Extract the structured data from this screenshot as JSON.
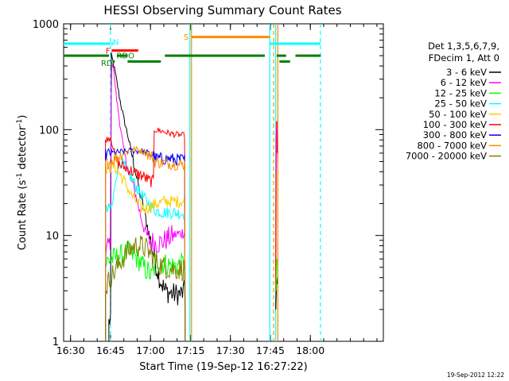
{
  "chart_data": {
    "type": "line",
    "title": "HESSI Observing Summary Count Rates",
    "xlabel": "Start Time (19-Sep-12 16:27:22)",
    "ylabel": "Count Rate (s^-1 detector^-1)",
    "ylabel_prefix": "Count Rate (s",
    "ylabel_mid": " detector",
    "ylabel_suffix": ")",
    "ylabel_exp": "-1",
    "yscale": "log",
    "ylim": [
      1,
      1000
    ],
    "xlim_minutes": [
      0,
      120
    ],
    "x_ticks": [
      {
        "label": "16:30",
        "t": 2.6
      },
      {
        "label": "16:45",
        "t": 17.6
      },
      {
        "label": "17:00",
        "t": 32.6
      },
      {
        "label": "17:15",
        "t": 47.6
      },
      {
        "label": "17:30",
        "t": 62.6
      },
      {
        "label": "17:45",
        "t": 77.6
      },
      {
        "label": "18:00",
        "t": 92.6
      }
    ],
    "y_ticks": [
      {
        "label": "1",
        "v": 1
      },
      {
        "label": "10",
        "v": 10
      },
      {
        "label": "100",
        "v": 100
      },
      {
        "label": "1000",
        "v": 1000
      }
    ],
    "legend_header": [
      "Det 1,3,5,6,7,9,",
      "FDecim 1, Att 0"
    ],
    "legend_placement": "right",
    "timestamp": "19-Sep-2012 12:22",
    "series": [
      {
        "name": "3 - 6 keV",
        "color": "#000000",
        "points": [
          [
            17.0,
            1.5
          ],
          [
            17.6,
            1.7
          ],
          [
            17.9,
            500
          ],
          [
            18.7,
            420
          ],
          [
            19.8,
            300
          ],
          [
            21.0,
            200
          ],
          [
            22.5,
            130
          ],
          [
            24.0,
            90
          ],
          [
            25.5,
            60
          ],
          [
            27.0,
            40
          ],
          [
            28.5,
            26
          ],
          [
            30.0,
            18
          ],
          [
            31.5,
            12
          ],
          [
            33.0,
            8
          ],
          [
            34.5,
            5.5
          ],
          [
            36.0,
            4
          ],
          [
            38.0,
            3
          ],
          [
            41.0,
            2.8
          ],
          [
            44.0,
            2.8
          ],
          [
            45.6,
            3
          ]
        ]
      },
      {
        "name": "6 - 12 keV",
        "color": "#ff00ff",
        "points": [
          [
            15.7,
            7
          ],
          [
            17.6,
            9
          ],
          [
            17.9,
            480
          ],
          [
            18.7,
            380
          ],
          [
            19.8,
            200
          ],
          [
            21.0,
            120
          ],
          [
            22.0,
            80
          ],
          [
            23.0,
            55
          ],
          [
            24.5,
            40
          ],
          [
            26.0,
            30
          ],
          [
            27.5,
            22
          ],
          [
            29.0,
            15
          ],
          [
            30.5,
            11
          ],
          [
            32.0,
            9
          ],
          [
            34.0,
            8.5
          ],
          [
            36.0,
            8.5
          ],
          [
            38.0,
            9
          ],
          [
            41.0,
            10
          ],
          [
            44.0,
            10.5
          ],
          [
            45.6,
            11
          ]
        ]
      },
      {
        "name": "12 - 25 keV",
        "color": "#00ff00",
        "points": [
          [
            15.7,
            5.5
          ],
          [
            17.6,
            6
          ],
          [
            18.0,
            6
          ],
          [
            20.0,
            6.2
          ],
          [
            22.0,
            6.5
          ],
          [
            24.0,
            7
          ],
          [
            26.0,
            6.5
          ],
          [
            28.0,
            6
          ],
          [
            30.0,
            5
          ],
          [
            32.0,
            4.5
          ],
          [
            33.0,
            4
          ],
          [
            35.0,
            6
          ],
          [
            37.0,
            5.5
          ],
          [
            40.0,
            5.2
          ],
          [
            43.0,
            5.2
          ],
          [
            45.6,
            5.5
          ]
        ]
      },
      {
        "name": "25 - 50 keV",
        "color": "#00ffff",
        "points": [
          [
            15.7,
            17
          ],
          [
            17.6,
            18
          ],
          [
            18.5,
            20
          ],
          [
            19.5,
            35
          ],
          [
            20.5,
            45
          ],
          [
            21.5,
            50
          ],
          [
            23.0,
            44
          ],
          [
            24.5,
            38
          ],
          [
            26.0,
            33
          ],
          [
            27.5,
            28
          ],
          [
            29.0,
            25
          ],
          [
            30.5,
            22
          ],
          [
            32.0,
            20
          ],
          [
            33.5,
            18
          ],
          [
            35.0,
            17
          ],
          [
            38.0,
            16.5
          ],
          [
            41.0,
            16.5
          ],
          [
            45.6,
            16
          ]
        ]
      },
      {
        "name": "50 - 100 keV",
        "color": "#ffcc00",
        "points": [
          [
            15.7,
            42
          ],
          [
            17.6,
            44
          ],
          [
            19.0,
            45
          ],
          [
            20.5,
            40
          ],
          [
            22.0,
            35
          ],
          [
            23.5,
            30
          ],
          [
            25.0,
            25
          ],
          [
            26.5,
            22
          ],
          [
            28.0,
            20
          ],
          [
            29.5,
            18
          ],
          [
            31.0,
            18
          ],
          [
            33.0,
            19
          ],
          [
            35.0,
            20
          ],
          [
            38.0,
            21
          ],
          [
            41.0,
            21
          ],
          [
            45.6,
            21
          ]
        ]
      },
      {
        "name": "100 - 300 keV",
        "color": "#ff0000",
        "points": [
          [
            15.7,
            80
          ],
          [
            17.6,
            85
          ],
          [
            18.5,
            70
          ],
          [
            19.5,
            55
          ],
          [
            20.5,
            48
          ],
          [
            22.0,
            45
          ],
          [
            24.0,
            43
          ],
          [
            26.0,
            40
          ],
          [
            28.0,
            38
          ],
          [
            30.0,
            36
          ],
          [
            32.0,
            33
          ],
          [
            33.8,
            32
          ],
          [
            34.0,
            100
          ],
          [
            36.0,
            98
          ],
          [
            38.0,
            95
          ],
          [
            40.0,
            92
          ],
          [
            42.0,
            90
          ],
          [
            45.6,
            88
          ]
        ]
      },
      {
        "name": "300 - 800 keV",
        "color": "#0000ff",
        "points": [
          [
            15.7,
            58
          ],
          [
            17.6,
            60
          ],
          [
            20.0,
            61
          ],
          [
            22.5,
            62
          ],
          [
            25.0,
            63
          ],
          [
            27.5,
            63
          ],
          [
            30.0,
            62
          ],
          [
            32.0,
            60
          ],
          [
            33.8,
            57
          ],
          [
            34.0,
            54
          ],
          [
            37.0,
            53
          ],
          [
            40.0,
            53
          ],
          [
            43.0,
            52
          ],
          [
            45.6,
            52
          ]
        ]
      },
      {
        "name": "800 - 7000 keV",
        "color": "#ff8c00",
        "points": [
          [
            15.7,
            48
          ],
          [
            17.6,
            50
          ],
          [
            20.0,
            55
          ],
          [
            22.5,
            60
          ],
          [
            25.0,
            65
          ],
          [
            27.5,
            65
          ],
          [
            30.0,
            62
          ],
          [
            32.0,
            58
          ],
          [
            33.8,
            54
          ],
          [
            34.0,
            50
          ],
          [
            37.0,
            49
          ],
          [
            40.0,
            48
          ],
          [
            43.0,
            47
          ],
          [
            45.6,
            47
          ]
        ]
      },
      {
        "name": "7000 - 20000 keV",
        "color": "#808000",
        "points": [
          [
            15.7,
            3.2
          ],
          [
            17.6,
            4
          ],
          [
            19.0,
            4.5
          ],
          [
            21.0,
            5.5
          ],
          [
            23.0,
            6.5
          ],
          [
            25.0,
            7.5
          ],
          [
            27.0,
            8
          ],
          [
            29.0,
            8
          ],
          [
            31.0,
            7.5
          ],
          [
            33.0,
            6.5
          ],
          [
            35.0,
            5.5
          ],
          [
            38.0,
            5
          ],
          [
            41.0,
            4.8
          ],
          [
            45.6,
            4.8
          ]
        ]
      }
    ],
    "late_burst": [
      {
        "color": "#ff0000",
        "points": [
          [
            79.6,
            3
          ],
          [
            79.8,
            80
          ],
          [
            80.0,
            120
          ],
          [
            80.2,
            60
          ]
        ]
      },
      {
        "color": "#ff00ff",
        "points": [
          [
            79.8,
            40
          ],
          [
            80.0,
            110
          ]
        ]
      },
      {
        "color": "#000000",
        "points": [
          [
            79.6,
            2
          ],
          [
            79.9,
            4
          ],
          [
            80.1,
            3.5
          ]
        ]
      },
      {
        "color": "#00ff00",
        "points": [
          [
            79.7,
            3
          ],
          [
            80.0,
            6
          ]
        ]
      }
    ],
    "vertical_markers": [
      {
        "t": 17.6,
        "color": "#00ffff",
        "style": "dashed"
      },
      {
        "t": 47.4,
        "color": "#00ffff",
        "style": "solid"
      },
      {
        "t": 48.0,
        "color": "#ff8c00",
        "style": "solid"
      },
      {
        "t": 77.4,
        "color": "#00ffff",
        "style": "solid"
      },
      {
        "t": 78.8,
        "color": "#ff8c00",
        "style": "dashed"
      },
      {
        "t": 79.6,
        "color": "#00ffff",
        "style": "solid"
      },
      {
        "t": 80.4,
        "color": "#ff8c00",
        "style": "solid"
      },
      {
        "t": 96.4,
        "color": "#00ffff",
        "style": "dashed"
      }
    ],
    "flag_bars": [
      {
        "label": "N",
        "color": "#00ffff",
        "y": 650,
        "segments": [
          [
            0,
            17.6
          ],
          [
            17.9,
            18.6
          ],
          [
            77.4,
            96.4
          ]
        ]
      },
      {
        "label": "S",
        "color": "#ff8c00",
        "y": 750,
        "segments": [
          [
            48.0,
            77.4
          ]
        ]
      },
      {
        "label": "F",
        "color": "#ff0000",
        "y": 560,
        "segments": [
          [
            18.0,
            28.0
          ]
        ]
      },
      {
        "label": "RDO",
        "color": "#008000",
        "y": 500,
        "segments": [
          [
            0,
            17.0
          ],
          [
            20.0,
            24.0
          ],
          [
            38.0,
            75.5
          ],
          [
            80.0,
            83.5
          ],
          [
            87.0,
            96.5
          ]
        ]
      },
      {
        "label": "RDO",
        "color": "#008000",
        "y": 440,
        "segments": [
          [
            18.5,
            19.2
          ],
          [
            24.0,
            36.5
          ],
          [
            81.0,
            85.0
          ]
        ]
      }
    ],
    "flag_labels": [
      {
        "text": "N",
        "color": "#00ffff",
        "t": 19.6,
        "v": 680
      },
      {
        "text": "S",
        "color": "#ff8c00",
        "t": 46.0,
        "v": 760
      },
      {
        "text": "F",
        "color": "#ff0000",
        "t": 16.6,
        "v": 560
      },
      {
        "text": "RDO",
        "color": "#008000",
        "t": 23.2,
        "v": 505
      },
      {
        "text": "RD",
        "color": "#008000",
        "t": 16.2,
        "v": 430
      }
    ]
  }
}
